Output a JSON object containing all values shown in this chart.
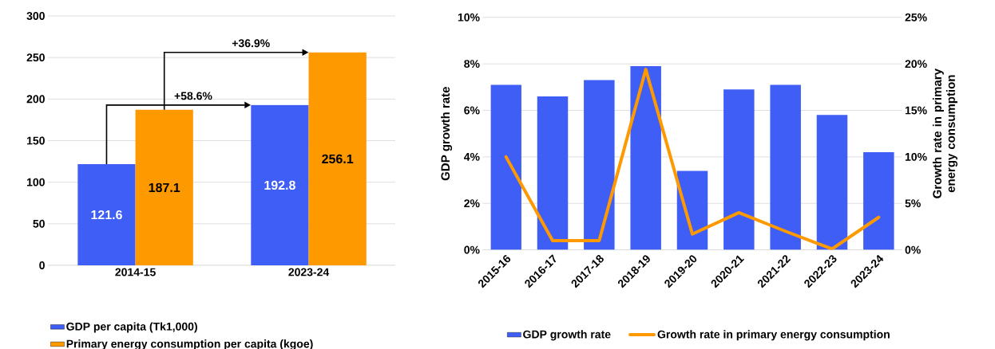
{
  "chart_data": [
    {
      "type": "bar",
      "categories": [
        "2014-15",
        "2023-24"
      ],
      "series": [
        {
          "name": "GDP per capita (Tk1,000)",
          "color": "#3f5ef5",
          "values": [
            121.6,
            192.8
          ]
        },
        {
          "name": "Primary energy consumption per capita (kgoe)",
          "color": "#ff9900",
          "values": [
            187.1,
            256.1
          ]
        }
      ],
      "ylim": [
        0,
        300
      ],
      "yticks": [
        0,
        50,
        100,
        150,
        200,
        250,
        300
      ],
      "grid": "y",
      "legend": "bottom",
      "data_labels": true,
      "annotations": [
        "+58.6%",
        "+36.9%"
      ]
    },
    {
      "type": "bar",
      "categories": [
        "2015-16",
        "2016-17",
        "2017-18",
        "2018-19",
        "2019-20",
        "2020-21",
        "2021-22",
        "2022-23",
        "2023-24"
      ],
      "series": [
        {
          "name": "GDP growth rate",
          "color": "#3f5ef5",
          "values": [
            7.1,
            6.6,
            7.3,
            7.9,
            3.4,
            6.9,
            7.1,
            5.8,
            4.2
          ]
        },
        {
          "name": "Growth rate in primary energy consumption",
          "type": "line",
          "axis": "y2",
          "color": "#ff9900",
          "values": [
            10.0,
            1.0,
            1.0,
            19.4,
            1.7,
            4.0,
            2.0,
            0.1,
            3.5
          ]
        }
      ],
      "ylabel": "GDP growth rate",
      "y2label": "Growth rate in primary energy consumption",
      "ylim": [
        0,
        10
      ],
      "yticks": [
        {
          "value": 0,
          "label": "0%"
        },
        {
          "value": 2,
          "label": "2%"
        },
        {
          "value": 4,
          "label": "4%"
        },
        {
          "value": 6,
          "label": "6%"
        },
        {
          "value": 8,
          "label": "8%"
        },
        {
          "value": 10,
          "label": "10%"
        }
      ],
      "y2lim": [
        0,
        25
      ],
      "y2ticks": [
        {
          "value": 0,
          "label": "0%"
        },
        {
          "value": 5,
          "label": "5%"
        },
        {
          "value": 10,
          "label": "10%"
        },
        {
          "value": 15,
          "label": "15%"
        },
        {
          "value": 20,
          "label": "20%"
        },
        {
          "value": 25,
          "label": "25%"
        }
      ],
      "grid": "y",
      "legend": "bottom",
      "marker": "none",
      "line_style": "solid"
    }
  ]
}
